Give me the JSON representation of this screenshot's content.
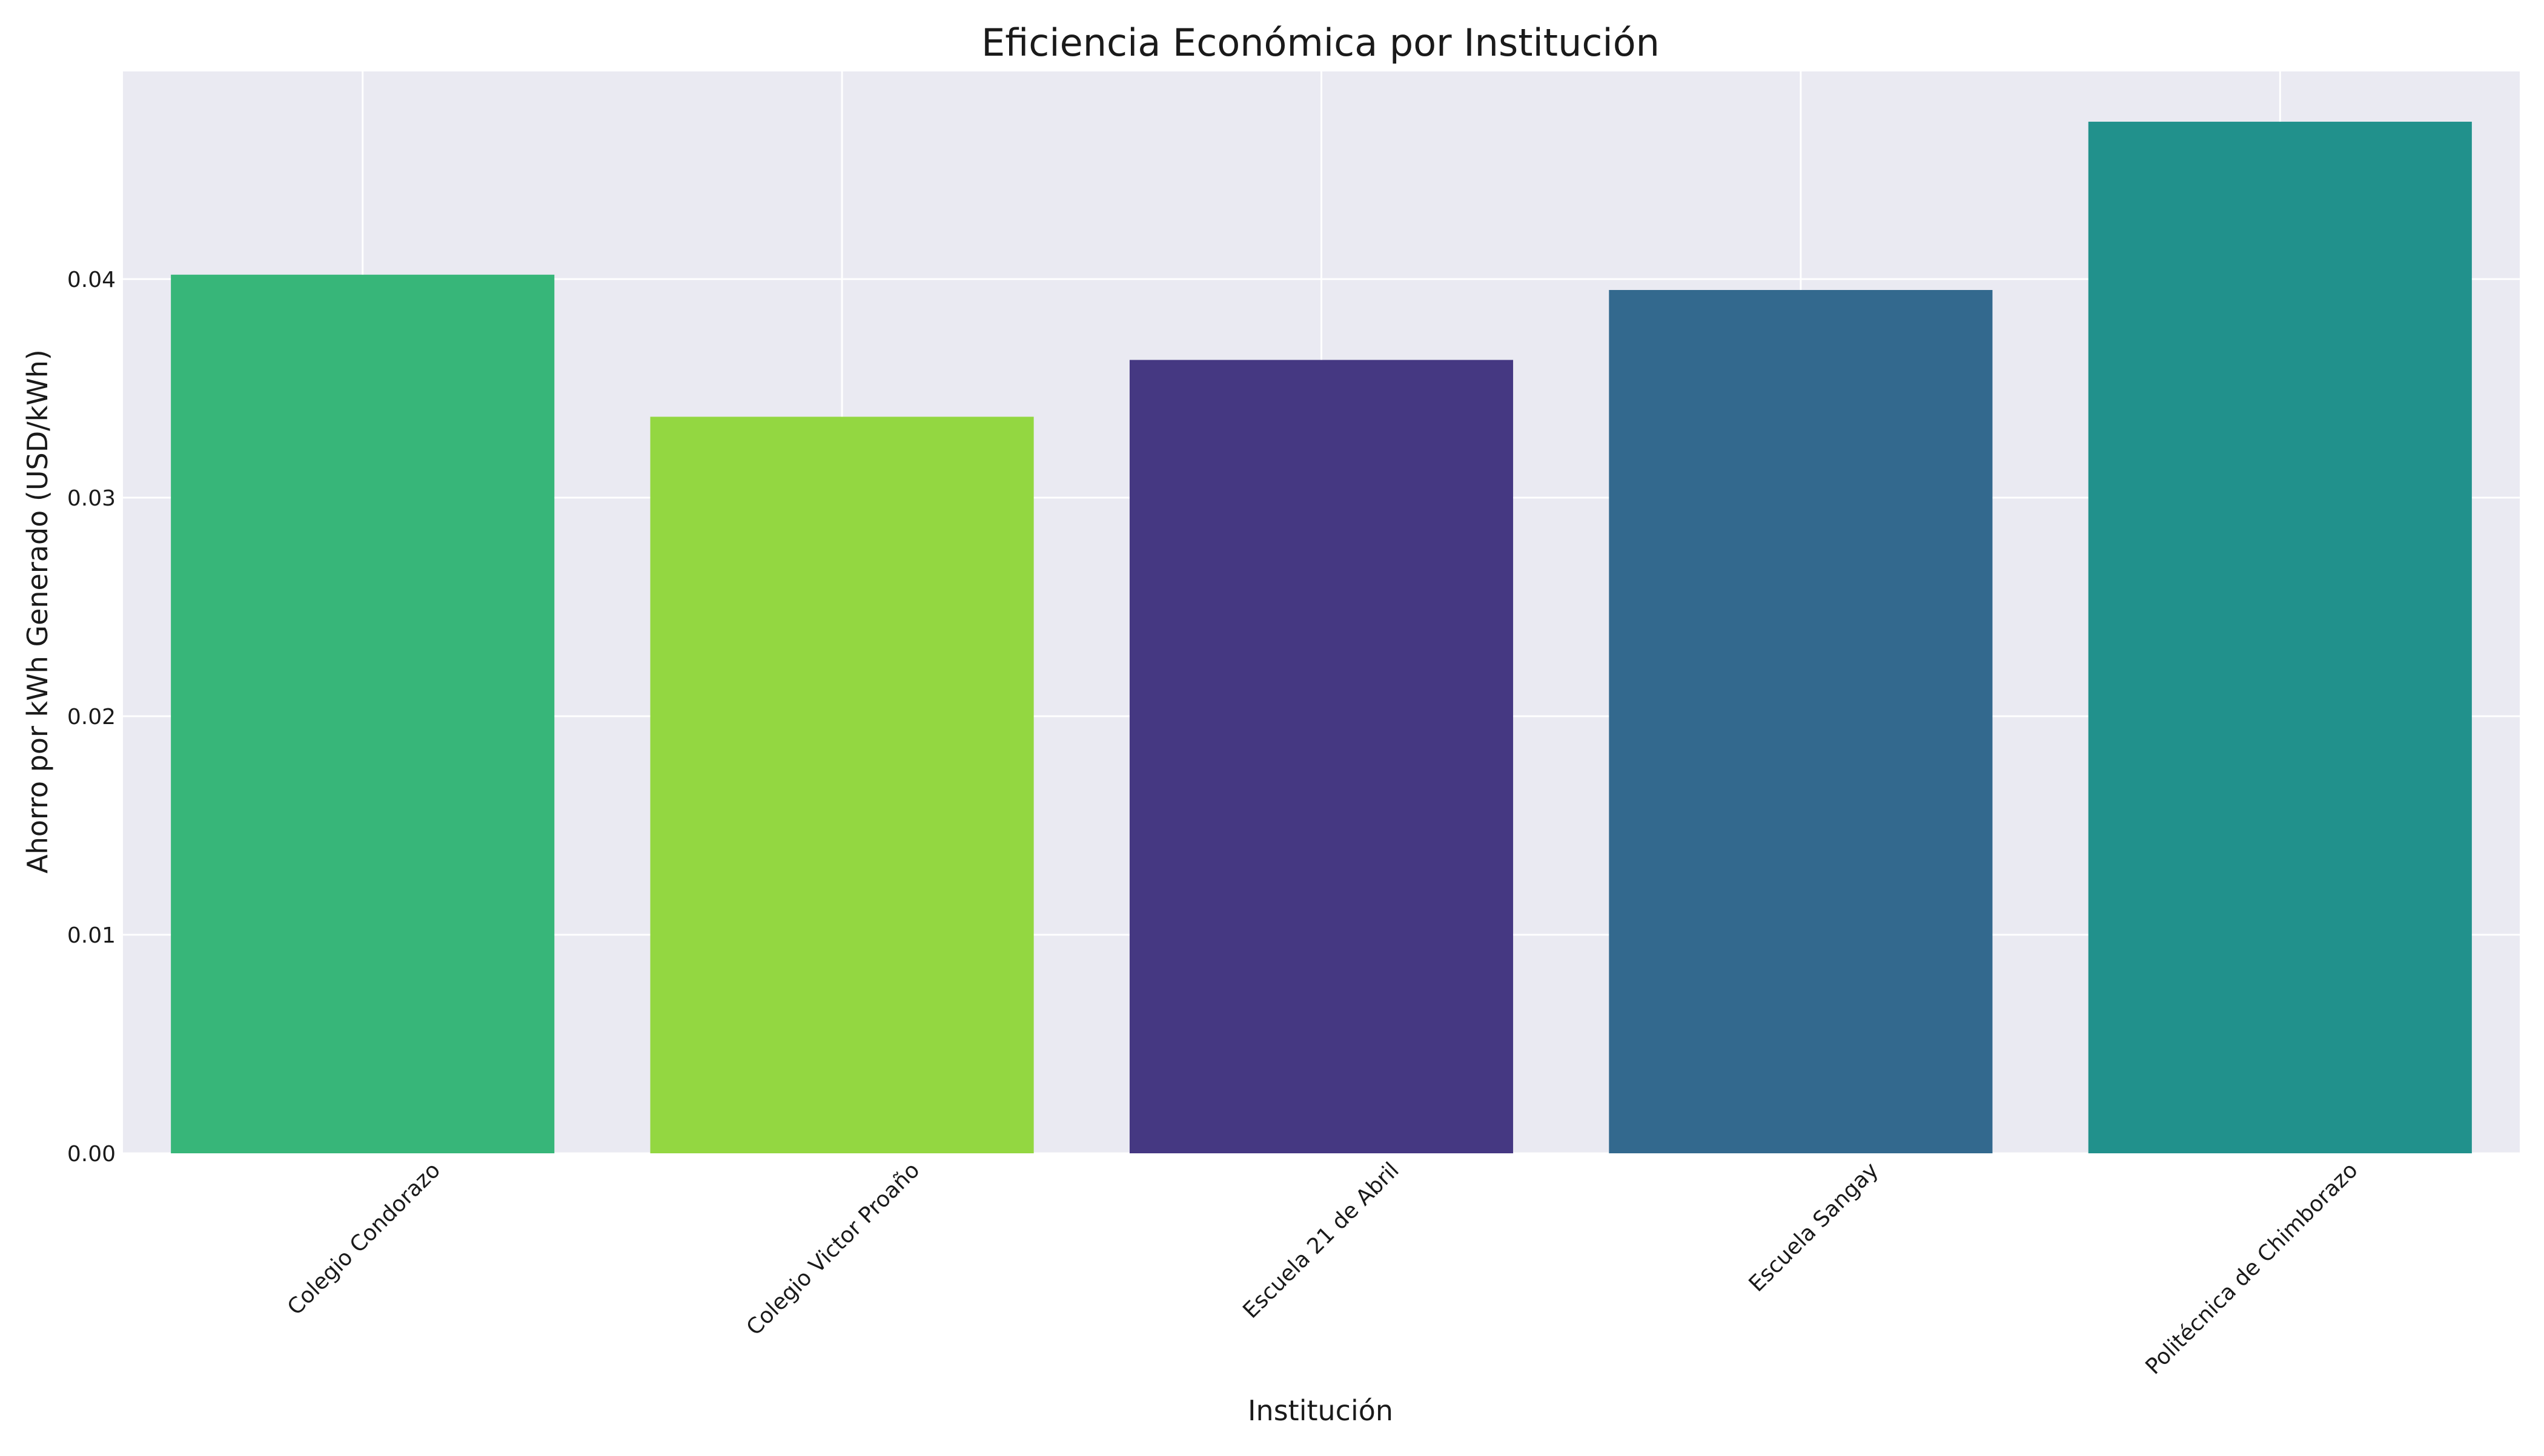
{
  "chart_data": {
    "type": "bar",
    "title": "Eficiencia Económica por Institución",
    "xlabel": "Institución",
    "ylabel": "Ahorro por kWh Generado (USD/kWh)",
    "categories": [
      "Colegio Condorazo",
      "Colegio Victor Proaño",
      "Escuela 21 de Abril",
      "Escuela Sangay",
      "Politécnica de Chimborazo"
    ],
    "values": [
      0.0402,
      0.0337,
      0.0363,
      0.0395,
      0.0472
    ],
    "colors": [
      "#37b679",
      "#93d741",
      "#453882",
      "#33698e",
      "#21918c"
    ],
    "ylim": [
      0,
      0.0495
    ],
    "yticks": [
      "0.00",
      "0.01",
      "0.02",
      "0.03",
      "0.04"
    ],
    "ytick_values": [
      0,
      0.01,
      0.02,
      0.03,
      0.04
    ],
    "grid": true,
    "legend": "none",
    "background": "#eaeaf2",
    "grid_color": "#ffffff"
  }
}
